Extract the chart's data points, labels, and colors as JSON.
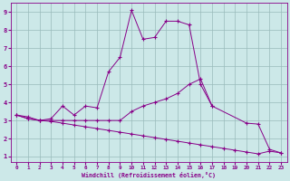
{
  "xlabel": "Windchill (Refroidissement éolien,°C)",
  "bg_color": "#cce8e8",
  "line_color": "#880088",
  "grid_color": "#99bbbb",
  "xlim": [
    -0.5,
    23.5
  ],
  "ylim": [
    0.7,
    9.5
  ],
  "xticks": [
    0,
    1,
    2,
    3,
    4,
    5,
    6,
    7,
    8,
    9,
    10,
    11,
    12,
    13,
    14,
    15,
    16,
    17,
    18,
    19,
    20,
    21,
    22,
    23
  ],
  "yticks": [
    1,
    2,
    3,
    4,
    5,
    6,
    7,
    8,
    9
  ],
  "curve1_x": [
    0,
    1,
    2,
    3,
    4,
    5,
    6,
    7,
    8,
    9,
    10,
    11,
    12,
    13,
    14,
    15,
    16,
    17
  ],
  "curve1_y": [
    3.3,
    3.2,
    3.0,
    3.1,
    3.8,
    3.3,
    3.8,
    3.7,
    5.7,
    6.5,
    9.1,
    7.5,
    7.6,
    8.5,
    8.5,
    8.3,
    5.0,
    3.8
  ],
  "curve2_x": [
    0,
    1,
    2,
    3,
    4,
    5,
    6,
    7,
    8,
    9,
    10,
    11,
    12,
    13,
    14,
    15,
    16,
    17,
    20,
    21,
    22,
    23
  ],
  "curve2_y": [
    3.3,
    3.1,
    3.0,
    3.0,
    3.0,
    3.0,
    3.0,
    3.0,
    3.0,
    3.0,
    3.5,
    3.8,
    4.0,
    4.2,
    4.5,
    5.0,
    5.3,
    3.8,
    2.85,
    2.8,
    1.4,
    1.2
  ],
  "curve3_x": [
    0,
    1,
    2,
    3,
    4,
    5,
    6,
    7,
    8,
    9,
    10,
    11,
    12,
    13,
    14,
    15,
    16,
    17,
    18,
    19,
    20,
    21,
    22,
    23
  ],
  "curve3_y": [
    3.3,
    3.1,
    3.0,
    2.95,
    2.85,
    2.75,
    2.65,
    2.55,
    2.45,
    2.35,
    2.25,
    2.15,
    2.05,
    1.95,
    1.85,
    1.75,
    1.65,
    1.55,
    1.45,
    1.35,
    1.25,
    1.15,
    1.3,
    1.2
  ]
}
